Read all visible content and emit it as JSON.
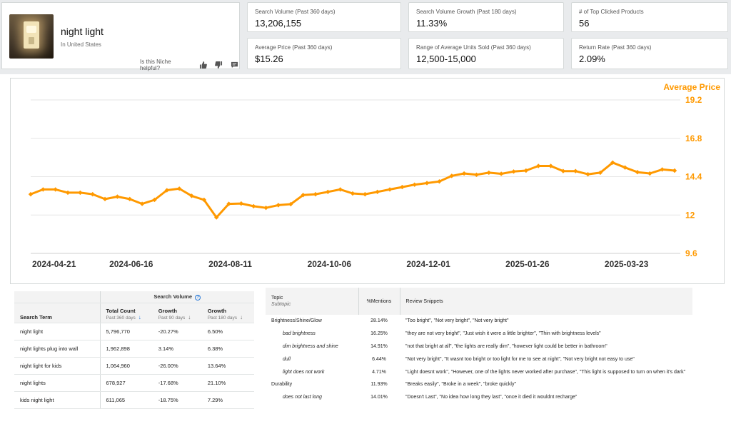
{
  "niche": {
    "title": "night light",
    "location": "In United States",
    "helpful_prompt": "Is this Niche helpful?"
  },
  "metrics": [
    {
      "label": "Search Volume (Past 360 days)",
      "value": "13,206,155"
    },
    {
      "label": "Search Volume Growth (Past 180 days)",
      "value": "11.33%"
    },
    {
      "label": "# of Top Clicked Products",
      "value": "56"
    },
    {
      "label": "Average Price (Past 360 days)",
      "value": "$15.26"
    },
    {
      "label": "Range of Average Units Sold (Past 360 days)",
      "value": "12,500-15,000"
    },
    {
      "label": "Return Rate (Past 360 days)",
      "value": "2.09%"
    }
  ],
  "colors": {
    "accent": "#ff9900",
    "grid": "#e6e6e6",
    "axis_text": "#333333"
  },
  "chart_data": {
    "type": "line",
    "series": [
      {
        "name": "Average Price",
        "values": [
          13.3,
          13.6,
          13.6,
          13.4,
          13.4,
          13.3,
          13.0,
          13.15,
          13.0,
          12.7,
          12.95,
          13.55,
          13.65,
          13.2,
          12.95,
          11.85,
          12.7,
          12.72,
          12.55,
          12.45,
          12.62,
          12.68,
          13.25,
          13.3,
          13.45,
          13.6,
          13.35,
          13.3,
          13.45,
          13.6,
          13.75,
          13.9,
          14.0,
          14.1,
          14.45,
          14.6,
          14.52,
          14.65,
          14.58,
          14.72,
          14.78,
          15.07,
          15.07,
          14.75,
          14.75,
          14.55,
          14.65,
          15.28,
          14.97,
          14.68,
          14.6,
          14.85,
          14.78
        ]
      }
    ],
    "x_ticks": [
      "2024-04-21",
      "2024-06-16",
      "2024-08-11",
      "2024-10-06",
      "2024-12-01",
      "2025-01-26",
      "2025-03-23"
    ],
    "y_ticks": [
      9.6,
      12,
      14.4,
      16.8,
      19.2
    ],
    "ylim": [
      9.6,
      19.2
    ],
    "ylabel": "Average Price",
    "grid": true
  },
  "search_terms": {
    "group_header": "Search Volume",
    "columns": [
      {
        "title": "Search Term",
        "sub": ""
      },
      {
        "title": "Total Count",
        "sub": "Past 360 days"
      },
      {
        "title": "Growth",
        "sub": "Past 90 days"
      },
      {
        "title": "Growth",
        "sub": "Past 180 days"
      }
    ],
    "rows": [
      {
        "term": "night light",
        "count": "5,796,770",
        "g90": "-20.27%",
        "g180": "6.50%"
      },
      {
        "term": "night lights plug into wall",
        "count": "1,962,898",
        "g90": "3.14%",
        "g180": "6.38%"
      },
      {
        "term": "night light for kids",
        "count": "1,064,960",
        "g90": "-26.00%",
        "g180": "13.64%"
      },
      {
        "term": "night lights",
        "count": "678,927",
        "g90": "-17.68%",
        "g180": "21.10%"
      },
      {
        "term": "kids night light",
        "count": "611,065",
        "g90": "-18.75%",
        "g180": "7.29%"
      }
    ]
  },
  "topics": {
    "headers": {
      "topic": "Topic",
      "subtopic": "Subtopic",
      "mentions": "%Mentions",
      "snippets": "Review Snippets"
    },
    "rows": [
      {
        "topic": "Brightness/Shine/Glow",
        "pct": "28.14%",
        "snippet": "\"Too bright\", \"Not very bright\", \"Not very bright\"",
        "sub": false
      },
      {
        "topic": "bad brightness",
        "pct": "16.25%",
        "snippet": "\"they are not very bright\", \"Just wish it were a little brighter\", \"Thin with brightness levels\"",
        "sub": true
      },
      {
        "topic": "dim brightness and shine",
        "pct": "14.91%",
        "snippet": "\"not that bright at all\", \"the lights are really dim\", \"however light could be better in bathroom\"",
        "sub": true
      },
      {
        "topic": "dull",
        "pct": "6.44%",
        "snippet": "\"Not very bright\", \"It wasnt too bright or too light for me to see at night\", \"Not very bright not easy to use\"",
        "sub": true
      },
      {
        "topic": "light does not work",
        "pct": "4.71%",
        "snippet": "\"Light doesnt work\", \"However, one of the lights never worked after purchase\", \"This light is supposed to turn on when it's dark\"",
        "sub": true
      },
      {
        "topic": "Durability",
        "pct": "11.93%",
        "snippet": "\"Breaks easily\", \"Broke in a week\", \"broke quickly\"",
        "sub": false
      },
      {
        "topic": "does not last long",
        "pct": "14.01%",
        "snippet": "\"Doesn't Last\", \"No idea how long they last\", \"once it died it wouldnt recharge\"",
        "sub": true
      }
    ]
  }
}
